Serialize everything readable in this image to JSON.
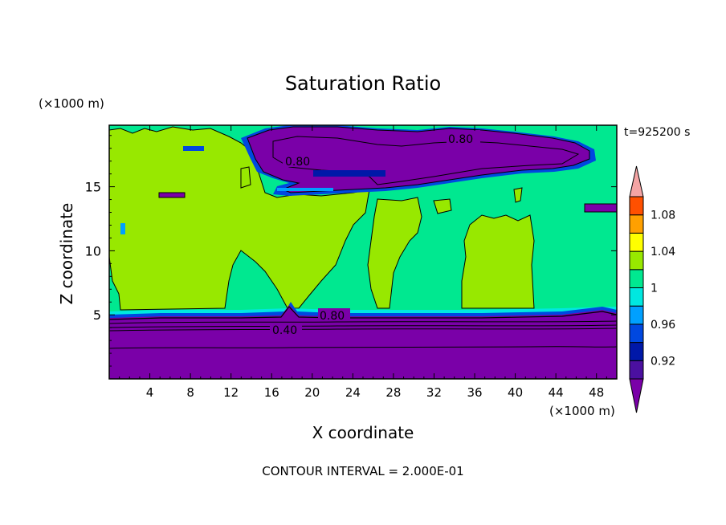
{
  "chart_data": {
    "type": "heatmap",
    "title": "Saturation Ratio",
    "time_label": "t=925200 s",
    "xlabel": "X coordinate",
    "ylabel": "Z coordinate",
    "x_unit": "(×1000 m)",
    "y_unit": "(×1000 m)",
    "footer": "CONTOUR INTERVAL = 2.000E-01",
    "xlim": [
      0,
      50
    ],
    "ylim": [
      0,
      19.8
    ],
    "x_ticks": [
      4,
      8,
      12,
      16,
      20,
      24,
      28,
      32,
      36,
      40,
      44,
      48
    ],
    "x_tick_labels": [
      "4",
      "8",
      "12",
      "16",
      "20",
      "24",
      "28",
      "32",
      "36",
      "40",
      "44",
      "48"
    ],
    "y_ticks": [
      5,
      10,
      15
    ],
    "y_tick_labels": [
      "5",
      "10",
      "15"
    ],
    "colorbar": {
      "levels": [
        0.9,
        0.92,
        0.94,
        0.96,
        0.98,
        1.0,
        1.02,
        1.04,
        1.06,
        1.08,
        1.1
      ],
      "colors": [
        "#7a00a8",
        "#4b10a0",
        "#0018a8",
        "#0048e0",
        "#00a0ff",
        "#00e8e0",
        "#00e890",
        "#98e800",
        "#ffff00",
        "#ffa000",
        "#ff5000",
        "#ff2000",
        "#f4a4a4"
      ],
      "tick_values": [
        0.92,
        0.96,
        1.0,
        1.04,
        1.08
      ],
      "tick_labels": [
        "0.92",
        "0.96",
        "1",
        "1.04",
        "1.08"
      ]
    },
    "contour_labels": [
      {
        "text": "0.80",
        "x": 18.6,
        "z": 17.0
      },
      {
        "text": "0.80",
        "x": 35.0,
        "z": 18.9
      },
      {
        "text": "0.80",
        "x": 22.0,
        "z": 5.0
      },
      {
        "text": "0.40",
        "x": 17.5,
        "z": 3.8
      }
    ],
    "regions": {
      "lower_dry_layer_top_z": 5.3,
      "contour_lines_z": [
        2.6,
        3.6,
        4.0,
        4.4,
        4.8
      ],
      "background_value": 0.99,
      "supersaturated_value": 1.0,
      "supersaturated_columns_x": [
        [
          0,
          12
        ],
        [
          14,
          18
        ],
        [
          18,
          24
        ],
        [
          26,
          28
        ],
        [
          34,
          41
        ]
      ],
      "upper_dry_layer_x": [
        14,
        48
      ],
      "upper_dry_layer_z": [
        15.2,
        19.6
      ]
    }
  }
}
